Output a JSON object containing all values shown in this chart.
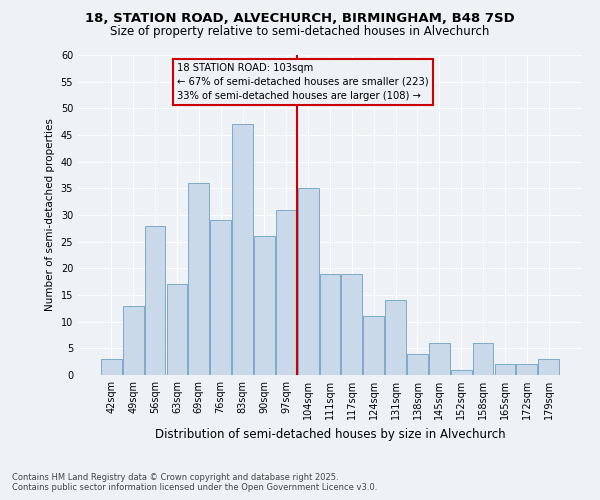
{
  "title1": "18, STATION ROAD, ALVECHURCH, BIRMINGHAM, B48 7SD",
  "title2": "Size of property relative to semi-detached houses in Alvechurch",
  "xlabel": "Distribution of semi-detached houses by size in Alvechurch",
  "ylabel": "Number of semi-detached properties",
  "bins": [
    "42sqm",
    "49sqm",
    "56sqm",
    "63sqm",
    "69sqm",
    "76sqm",
    "83sqm",
    "90sqm",
    "97sqm",
    "104sqm",
    "111sqm",
    "117sqm",
    "124sqm",
    "131sqm",
    "138sqm",
    "145sqm",
    "152sqm",
    "158sqm",
    "165sqm",
    "172sqm",
    "179sqm"
  ],
  "values": [
    3,
    13,
    28,
    17,
    36,
    29,
    47,
    26,
    31,
    35,
    19,
    19,
    11,
    14,
    4,
    6,
    1,
    6,
    2,
    2,
    3
  ],
  "bar_color": "#c9d9ea",
  "bar_edgecolor": "#7aaac8",
  "highlight_bin_index": 9,
  "highlight_label_line1": "18 STATION ROAD: 103sqm",
  "highlight_label_line2": "← 67% of semi-detached houses are smaller (223)",
  "highlight_label_line3": "33% of semi-detached houses are larger (108) →",
  "vline_color": "#cc0000",
  "box_edgecolor": "#cc0000",
  "ylim": [
    0,
    60
  ],
  "yticks": [
    0,
    5,
    10,
    15,
    20,
    25,
    30,
    35,
    40,
    45,
    50,
    55,
    60
  ],
  "footnote_line1": "Contains HM Land Registry data © Crown copyright and database right 2025.",
  "footnote_line2": "Contains public sector information licensed under the Open Government Licence v3.0.",
  "background_color": "#eef2f7",
  "grid_color": "#ffffff"
}
